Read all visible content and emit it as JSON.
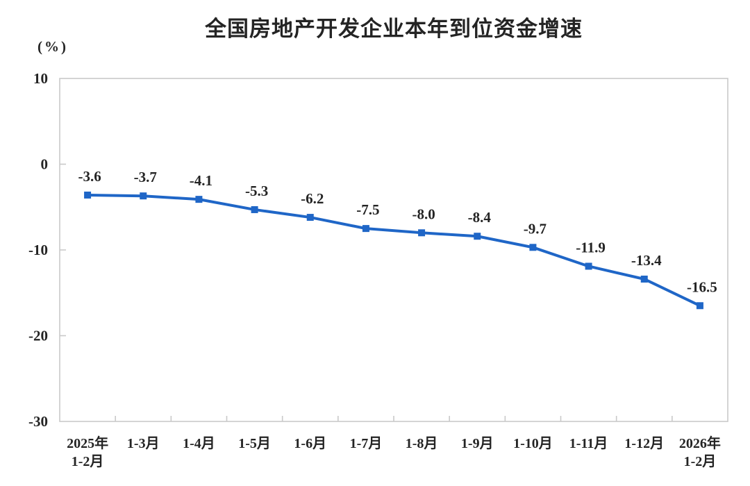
{
  "page": {
    "background": "#ffffff"
  },
  "chart_data": {
    "type": "line",
    "title": "全国房地产开发企业本年到位资金增速",
    "ylabel": "(%)",
    "xlabel": "",
    "categories": [
      "2025年1-2月",
      "1-3月",
      "1-4月",
      "1-5月",
      "1-6月",
      "1-7月",
      "1-8月",
      "1-9月",
      "1-10月",
      "1-11月",
      "1-12月",
      "2026年1-2月"
    ],
    "category_lines": [
      [
        "2025年",
        "1-2月"
      ],
      [
        "1-3月"
      ],
      [
        "1-4月"
      ],
      [
        "1-5月"
      ],
      [
        "1-6月"
      ],
      [
        "1-7月"
      ],
      [
        "1-8月"
      ],
      [
        "1-9月"
      ],
      [
        "1-10月"
      ],
      [
        "1-11月"
      ],
      [
        "1-12月"
      ],
      [
        "2026年",
        "1-2月"
      ]
    ],
    "values": [
      -3.6,
      -3.7,
      -4.1,
      -5.3,
      -6.2,
      -7.5,
      -8.0,
      -8.4,
      -9.7,
      -11.9,
      -13.4,
      -16.5
    ],
    "data_labels": [
      "-3.6",
      "-3.7",
      "-4.1",
      "-5.3",
      "-6.2",
      "-7.5",
      "-8.0",
      "-8.4",
      "-9.7",
      "-11.9",
      "-13.4",
      "-16.5"
    ],
    "ylim": [
      -30,
      10
    ],
    "yticks": [
      10,
      0,
      -10,
      -20,
      -30
    ],
    "grid": false,
    "legend": "none",
    "marker": "square",
    "colors": {
      "line": "#1F66C7",
      "marker": "#1F66C7",
      "axis": "#C9C9C9",
      "text": "#242424"
    }
  }
}
